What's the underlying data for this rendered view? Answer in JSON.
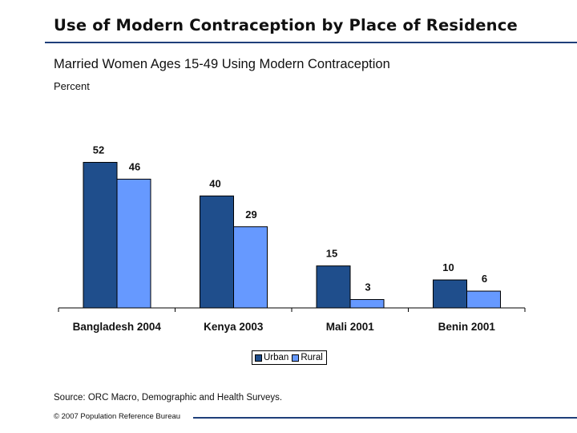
{
  "header": {
    "title": "Use of Modern Contraception by Place of Residence",
    "subtitle": "Married Women Ages 15-49 Using Modern Contraception",
    "unit": "Percent"
  },
  "chart_data": {
    "type": "bar",
    "categories": [
      "Bangladesh 2004",
      "Kenya 2003",
      "Mali 2001",
      "Benin 2001"
    ],
    "series": [
      {
        "name": "Urban",
        "values": [
          52,
          40,
          15,
          10
        ],
        "color": "#1f4e8c"
      },
      {
        "name": "Rural",
        "values": [
          46,
          29,
          3,
          6
        ],
        "color": "#6699ff"
      }
    ],
    "ylim": [
      0,
      55
    ],
    "grid": false,
    "legend_position": "bottom-center",
    "data_labels": true
  },
  "footer": {
    "source": "Source: ORC Macro, Demographic and Health Surveys.",
    "copyright": "© 2007 Population Reference Bureau"
  },
  "colors": {
    "accent_rule": "#1f3f7a"
  }
}
